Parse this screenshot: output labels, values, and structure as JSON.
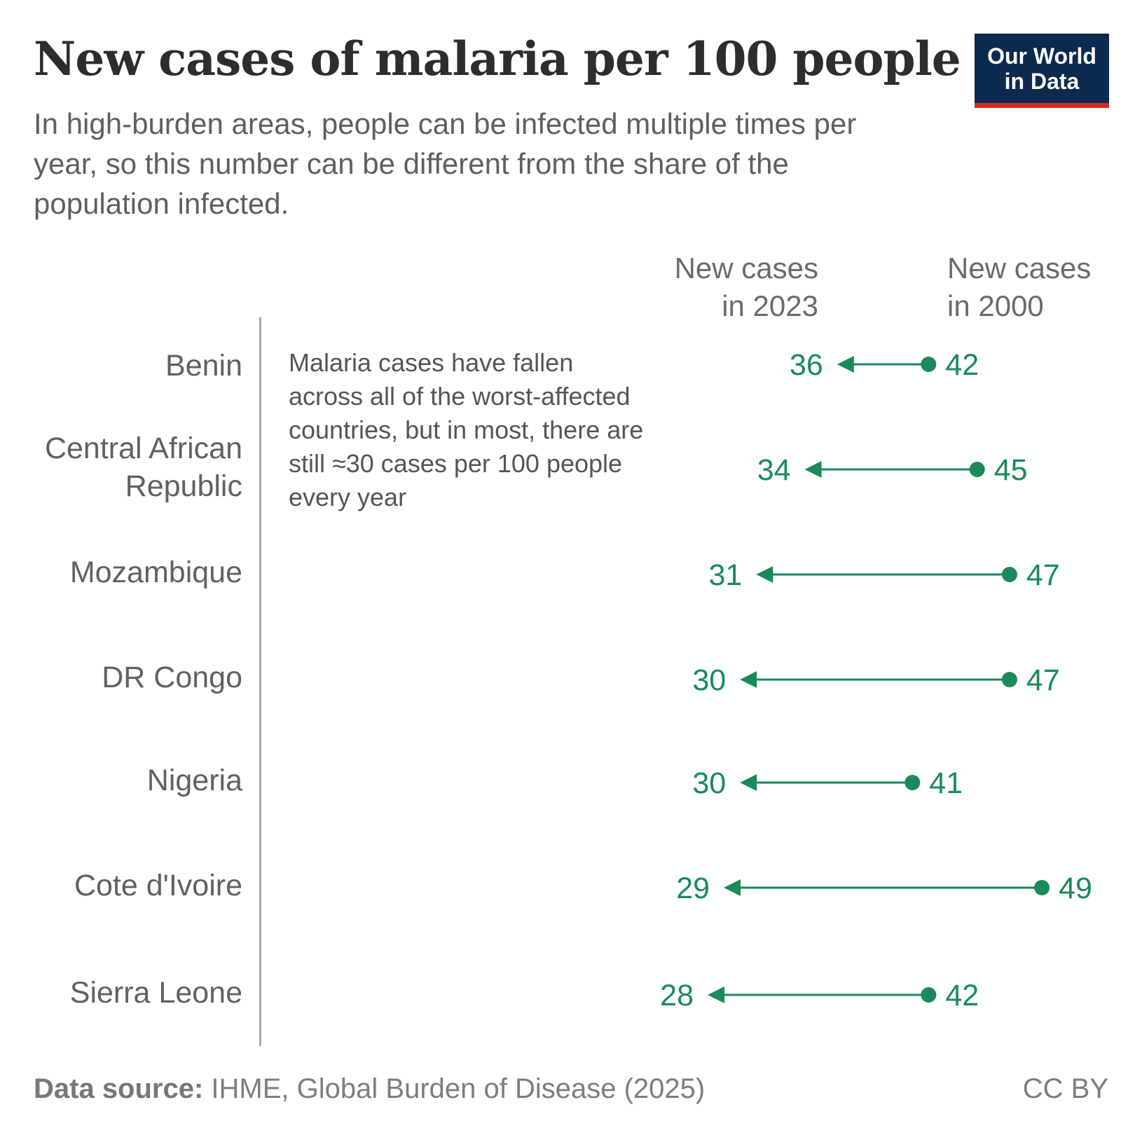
{
  "chart_data": {
    "type": "slope",
    "title": "New cases of malaria per 100 people",
    "subtitle": "In high-burden areas, people can be infected multiple times per year, so this number can be different from the share of the population infected.",
    "column_headers": {
      "start": "New cases\nin 2000",
      "end": "New cases\nin 2023"
    },
    "annotation": "Malaria cases have fallen across all of the worst-affected countries, but in most, there are still ≈30 cases per 100 people every year",
    "series_color": "#1a8a5b",
    "rows": [
      {
        "country": "Benin",
        "value_2000": 42,
        "value_2023": 36
      },
      {
        "country": "Central African Republic",
        "value_2000": 45,
        "value_2023": 34
      },
      {
        "country": "Mozambique",
        "value_2000": 47,
        "value_2023": 31
      },
      {
        "country": "DR Congo",
        "value_2000": 47,
        "value_2023": 30
      },
      {
        "country": "Nigeria",
        "value_2000": 41,
        "value_2023": 30
      },
      {
        "country": "Cote d'Ivoire",
        "value_2000": 49,
        "value_2023": 29
      },
      {
        "country": "Sierra Leone",
        "value_2000": 42,
        "value_2023": 28
      }
    ]
  },
  "logo": {
    "line1": "Our World",
    "line2": "in Data"
  },
  "footer": {
    "source_label": "Data source:",
    "source_text": " IHME, Global Burden of Disease (2025)",
    "license": "CC BY"
  }
}
